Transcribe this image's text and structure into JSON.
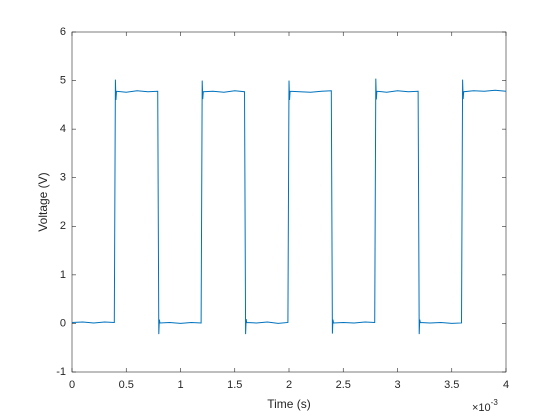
{
  "chart_data": {
    "type": "line",
    "xlabel": "Time (s)",
    "ylabel": "Voltage (V)",
    "xscale_base": "×10",
    "xscale_exponent": "-3",
    "x": [
      0,
      0.1,
      0.2,
      0.3,
      0.39,
      0.4,
      0.405,
      0.41,
      0.5,
      0.6,
      0.7,
      0.79,
      0.8,
      0.805,
      0.81,
      0.9,
      1.0,
      1.1,
      1.19,
      1.2,
      1.205,
      1.21,
      1.3,
      1.4,
      1.5,
      1.59,
      1.6,
      1.605,
      1.61,
      1.7,
      1.8,
      1.9,
      1.99,
      2.0,
      2.005,
      2.01,
      2.1,
      2.2,
      2.3,
      2.39,
      2.4,
      2.405,
      2.41,
      2.5,
      2.6,
      2.7,
      2.79,
      2.8,
      2.805,
      2.81,
      2.9,
      3.0,
      3.1,
      3.19,
      3.2,
      3.205,
      3.21,
      3.3,
      3.4,
      3.5,
      3.59,
      3.6,
      3.605,
      3.61,
      3.7,
      3.8,
      3.9,
      4.0
    ],
    "values": [
      0.02,
      0.03,
      0.01,
      0.03,
      0.02,
      5.02,
      4.6,
      4.78,
      4.76,
      4.79,
      4.77,
      4.78,
      -0.22,
      0.08,
      0.01,
      0.02,
      0.0,
      0.02,
      0.01,
      5.0,
      4.62,
      4.77,
      4.78,
      4.76,
      4.79,
      4.77,
      -0.22,
      0.09,
      0.02,
      0.01,
      0.03,
      0.0,
      0.02,
      5.0,
      4.6,
      4.78,
      4.77,
      4.76,
      4.78,
      4.79,
      -0.21,
      0.08,
      0.01,
      0.02,
      0.01,
      0.03,
      0.02,
      5.04,
      4.61,
      4.78,
      4.76,
      4.79,
      4.77,
      4.78,
      -0.22,
      0.08,
      0.02,
      0.01,
      0.02,
      0.0,
      0.01,
      5.02,
      4.62,
      4.77,
      4.79,
      4.78,
      4.8,
      4.78
    ],
    "color": "#0072bd",
    "xlim": [
      0,
      4
    ],
    "xticks": [
      0,
      0.5,
      1,
      1.5,
      2,
      2.5,
      3,
      3.5,
      4
    ],
    "ylim": [
      -1,
      6
    ],
    "yticks": [
      -1,
      0,
      1,
      2,
      3,
      4,
      5,
      6
    ]
  }
}
